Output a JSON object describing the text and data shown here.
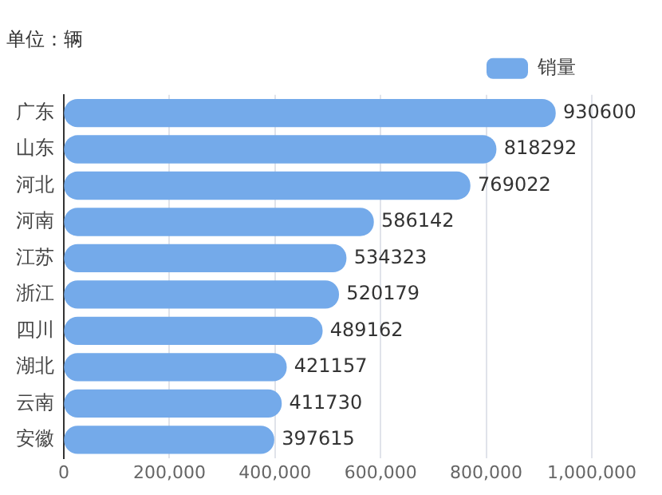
{
  "chart_data": {
    "type": "bar",
    "orientation": "horizontal",
    "title": "单位：辆",
    "categories": [
      "广东",
      "山东",
      "河北",
      "河南",
      "江苏",
      "浙江",
      "四川",
      "湖北",
      "云南",
      "安徽"
    ],
    "series": [
      {
        "name": "销量",
        "color": "#74aaea",
        "values": [
          930600,
          818292,
          769022,
          586142,
          534323,
          520179,
          489162,
          421157,
          411730,
          397615
        ]
      }
    ],
    "xlim": [
      0,
      1000000
    ],
    "xticks": [
      {
        "value": 0,
        "label": "0"
      },
      {
        "value": 200000,
        "label": "200,000"
      },
      {
        "value": 400000,
        "label": "400,000"
      },
      {
        "value": 600000,
        "label": "600,000"
      },
      {
        "value": 800000,
        "label": "800,000"
      },
      {
        "value": 1000000,
        "label": "1,000,000"
      }
    ],
    "grid": "x",
    "legend": "top right",
    "data_labels": true
  }
}
